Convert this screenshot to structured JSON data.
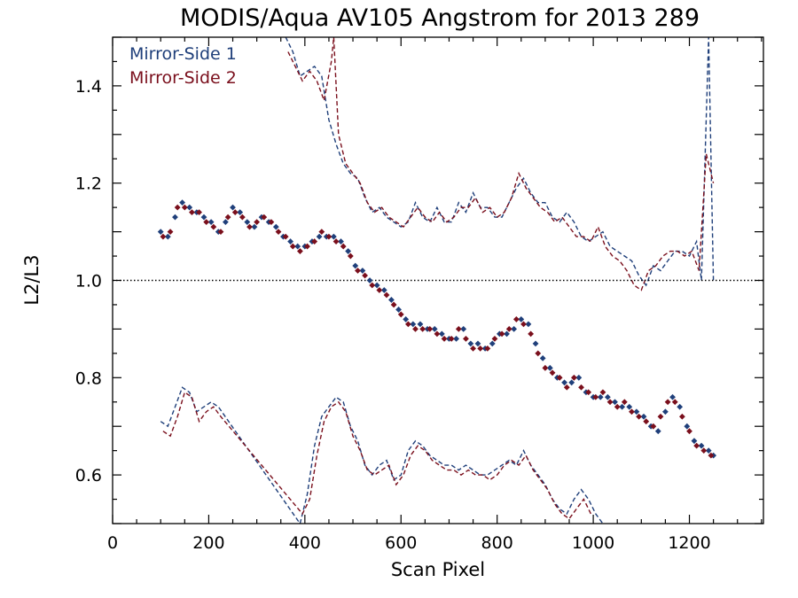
{
  "chart_data": {
    "type": "scatter",
    "title": "MODIS/Aqua AV105 Angstrom for 2013 289",
    "xlabel": "Scan Pixel",
    "ylabel": "L2/L3",
    "xlim": [
      0,
      1354
    ],
    "ylim": [
      0.5,
      1.5
    ],
    "x_ticks": [
      0,
      200,
      400,
      600,
      800,
      1000,
      1200
    ],
    "x_tick_labels": [
      "0",
      "200",
      "400",
      "600",
      "800",
      "1000",
      "1200"
    ],
    "y_ticks": [
      0.6,
      0.8,
      1.0,
      1.2,
      1.4
    ],
    "y_tick_labels": [
      "0.6",
      "0.8",
      "1.0",
      "1.2",
      "1.4"
    ],
    "reference_line": 1.0,
    "grid": false,
    "legend_position": "top-left",
    "series": [
      {
        "name": "Mirror-Side 1",
        "color": "#1f3f7a",
        "points": {
          "x": [
            100,
            115,
            130,
            145,
            160,
            175,
            190,
            205,
            220,
            235,
            250,
            265,
            280,
            295,
            310,
            325,
            340,
            355,
            370,
            385,
            400,
            415,
            430,
            445,
            460,
            475,
            490,
            505,
            520,
            535,
            550,
            565,
            580,
            595,
            610,
            625,
            640,
            655,
            670,
            685,
            700,
            715,
            730,
            745,
            760,
            775,
            790,
            805,
            820,
            835,
            850,
            865,
            880,
            895,
            910,
            925,
            940,
            955,
            970,
            985,
            1000,
            1015,
            1030,
            1045,
            1060,
            1075,
            1090,
            1105,
            1120,
            1135,
            1150,
            1165,
            1180,
            1195,
            1210,
            1225,
            1240,
            1250
          ],
          "y": [
            1.1,
            1.09,
            1.13,
            1.16,
            1.15,
            1.14,
            1.13,
            1.12,
            1.1,
            1.12,
            1.15,
            1.14,
            1.12,
            1.11,
            1.13,
            1.12,
            1.11,
            1.09,
            1.08,
            1.07,
            1.07,
            1.08,
            1.09,
            1.09,
            1.09,
            1.08,
            1.06,
            1.03,
            1.02,
            1.0,
            0.99,
            0.98,
            0.96,
            0.94,
            0.92,
            0.91,
            0.91,
            0.9,
            0.9,
            0.89,
            0.88,
            0.88,
            0.9,
            0.87,
            0.87,
            0.86,
            0.87,
            0.89,
            0.89,
            0.9,
            0.92,
            0.91,
            0.87,
            0.84,
            0.82,
            0.8,
            0.79,
            0.79,
            0.8,
            0.77,
            0.76,
            0.76,
            0.76,
            0.75,
            0.74,
            0.74,
            0.73,
            0.72,
            0.7,
            0.69,
            0.73,
            0.76,
            0.74,
            0.7,
            0.67,
            0.66,
            0.65,
            0.64
          ]
        },
        "upper_bound": {
          "x": [
            360,
            375,
            390,
            405,
            420,
            435,
            450,
            465,
            480,
            495,
            510,
            525,
            540,
            555,
            570,
            585,
            600,
            615,
            630,
            645,
            660,
            675,
            690,
            705,
            720,
            735,
            750,
            765,
            780,
            795,
            810,
            825,
            840,
            855,
            870,
            885,
            900,
            915,
            930,
            945,
            960,
            975,
            990,
            1005,
            1020,
            1035,
            1050,
            1065,
            1080,
            1095,
            1110,
            1125,
            1140,
            1155,
            1170,
            1185,
            1200,
            1215,
            1225,
            1240,
            1250
          ],
          "y": [
            1.5,
            1.47,
            1.42,
            1.43,
            1.44,
            1.42,
            1.33,
            1.28,
            1.24,
            1.22,
            1.21,
            1.17,
            1.14,
            1.15,
            1.13,
            1.12,
            1.11,
            1.12,
            1.16,
            1.13,
            1.12,
            1.15,
            1.12,
            1.12,
            1.16,
            1.14,
            1.18,
            1.15,
            1.15,
            1.13,
            1.13,
            1.16,
            1.19,
            1.21,
            1.18,
            1.16,
            1.16,
            1.13,
            1.12,
            1.14,
            1.12,
            1.09,
            1.08,
            1.09,
            1.1,
            1.07,
            1.06,
            1.05,
            1.04,
            1.01,
            0.99,
            1.03,
            1.02,
            1.04,
            1.06,
            1.06,
            1.05,
            1.08,
            1.0,
            1.5,
            1.0
          ]
        },
        "lower_bound": {
          "x": [
            100,
            115,
            130,
            145,
            160,
            175,
            190,
            205,
            220,
            390,
            405,
            420,
            435,
            450,
            465,
            480,
            495,
            510,
            525,
            540,
            555,
            570,
            585,
            600,
            615,
            630,
            645,
            660,
            675,
            690,
            705,
            720,
            735,
            750,
            765,
            780,
            795,
            810,
            825,
            840,
            855,
            870,
            885,
            900,
            915,
            930,
            945,
            960,
            975,
            990,
            1005,
            1020
          ],
          "y": [
            0.71,
            0.7,
            0.74,
            0.78,
            0.77,
            0.73,
            0.74,
            0.75,
            0.74,
            0.5,
            0.56,
            0.66,
            0.72,
            0.74,
            0.76,
            0.75,
            0.7,
            0.67,
            0.62,
            0.6,
            0.62,
            0.63,
            0.59,
            0.6,
            0.65,
            0.67,
            0.66,
            0.64,
            0.63,
            0.62,
            0.62,
            0.61,
            0.62,
            0.61,
            0.6,
            0.6,
            0.61,
            0.62,
            0.63,
            0.62,
            0.65,
            0.62,
            0.6,
            0.58,
            0.55,
            0.53,
            0.52,
            0.55,
            0.57,
            0.55,
            0.52,
            0.5
          ]
        }
      },
      {
        "name": "Mirror-Side 2",
        "color": "#7a0f1c",
        "points": {
          "x": [
            105,
            120,
            135,
            150,
            165,
            180,
            195,
            210,
            225,
            240,
            255,
            270,
            285,
            300,
            315,
            330,
            345,
            360,
            375,
            390,
            405,
            420,
            435,
            450,
            465,
            480,
            495,
            510,
            525,
            540,
            555,
            570,
            585,
            600,
            615,
            630,
            645,
            660,
            675,
            690,
            705,
            720,
            735,
            750,
            765,
            780,
            795,
            810,
            825,
            840,
            855,
            870,
            885,
            900,
            915,
            930,
            945,
            960,
            975,
            990,
            1005,
            1020,
            1035,
            1050,
            1065,
            1080,
            1095,
            1110,
            1125,
            1140,
            1155,
            1170,
            1185,
            1200,
            1215,
            1230,
            1245
          ],
          "y": [
            1.09,
            1.1,
            1.15,
            1.15,
            1.14,
            1.14,
            1.12,
            1.11,
            1.1,
            1.13,
            1.14,
            1.13,
            1.11,
            1.12,
            1.13,
            1.12,
            1.1,
            1.09,
            1.07,
            1.06,
            1.07,
            1.08,
            1.1,
            1.09,
            1.08,
            1.07,
            1.05,
            1.02,
            1.01,
            0.99,
            0.98,
            0.97,
            0.95,
            0.93,
            0.91,
            0.9,
            0.9,
            0.9,
            0.89,
            0.88,
            0.88,
            0.9,
            0.88,
            0.86,
            0.86,
            0.86,
            0.88,
            0.89,
            0.9,
            0.92,
            0.91,
            0.89,
            0.85,
            0.82,
            0.81,
            0.8,
            0.78,
            0.8,
            0.78,
            0.77,
            0.76,
            0.77,
            0.75,
            0.74,
            0.75,
            0.73,
            0.72,
            0.71,
            0.7,
            0.72,
            0.75,
            0.75,
            0.72,
            0.69,
            0.66,
            0.65,
            0.64
          ]
        },
        "upper_bound": {
          "x": [
            365,
            380,
            395,
            410,
            425,
            440,
            455,
            460,
            470,
            485,
            500,
            515,
            530,
            545,
            560,
            575,
            590,
            605,
            620,
            635,
            650,
            665,
            680,
            695,
            710,
            725,
            740,
            755,
            770,
            785,
            800,
            815,
            830,
            845,
            860,
            875,
            890,
            905,
            920,
            935,
            950,
            965,
            980,
            995,
            1010,
            1025,
            1040,
            1055,
            1070,
            1085,
            1100,
            1115,
            1130,
            1145,
            1160,
            1175,
            1190,
            1205,
            1220,
            1235,
            1250
          ],
          "y": [
            1.47,
            1.44,
            1.41,
            1.43,
            1.41,
            1.37,
            1.45,
            1.5,
            1.3,
            1.24,
            1.22,
            1.2,
            1.16,
            1.14,
            1.15,
            1.13,
            1.12,
            1.11,
            1.13,
            1.15,
            1.13,
            1.12,
            1.14,
            1.12,
            1.13,
            1.15,
            1.15,
            1.17,
            1.14,
            1.15,
            1.13,
            1.14,
            1.17,
            1.22,
            1.19,
            1.17,
            1.15,
            1.14,
            1.12,
            1.13,
            1.11,
            1.09,
            1.09,
            1.08,
            1.11,
            1.07,
            1.05,
            1.04,
            1.02,
            0.99,
            0.98,
            1.02,
            1.03,
            1.05,
            1.06,
            1.06,
            1.05,
            1.06,
            1.02,
            1.26,
            1.2
          ]
        },
        "lower_bound": {
          "x": [
            105,
            120,
            135,
            150,
            165,
            180,
            195,
            210,
            225,
            395,
            410,
            425,
            440,
            455,
            470,
            485,
            500,
            515,
            530,
            545,
            560,
            575,
            590,
            605,
            620,
            635,
            650,
            665,
            680,
            695,
            710,
            725,
            740,
            755,
            770,
            785,
            800,
            815,
            830,
            845,
            860,
            875,
            890,
            905,
            920,
            935,
            950,
            965,
            980,
            995
          ],
          "y": [
            0.69,
            0.68,
            0.72,
            0.77,
            0.76,
            0.71,
            0.73,
            0.74,
            0.72,
            0.52,
            0.55,
            0.64,
            0.71,
            0.74,
            0.75,
            0.73,
            0.68,
            0.65,
            0.61,
            0.6,
            0.61,
            0.62,
            0.58,
            0.6,
            0.64,
            0.66,
            0.65,
            0.63,
            0.62,
            0.61,
            0.61,
            0.6,
            0.61,
            0.6,
            0.6,
            0.59,
            0.6,
            0.62,
            0.63,
            0.62,
            0.64,
            0.61,
            0.59,
            0.57,
            0.54,
            0.52,
            0.51,
            0.53,
            0.55,
            0.52
          ]
        }
      }
    ]
  }
}
